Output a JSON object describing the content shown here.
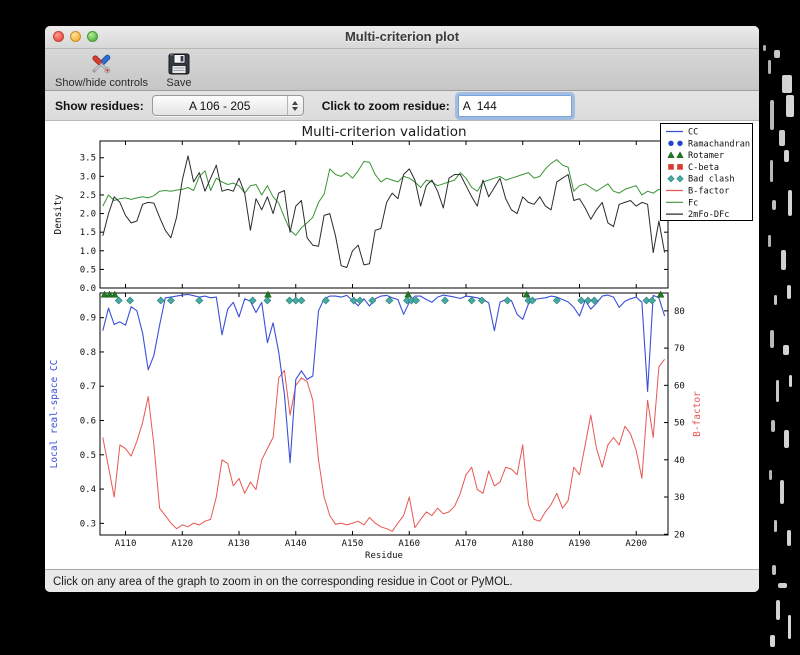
{
  "window": {
    "title": "Multi-criterion plot"
  },
  "toolbar": {
    "items": [
      {
        "label": "Show/hide controls",
        "icon": "tools-icon"
      },
      {
        "label": "Save",
        "icon": "save-icon"
      }
    ]
  },
  "controls": {
    "show_residues_label": "Show residues:",
    "residue_range_value": "A 106 - 205",
    "zoom_residue_label": "Click to zoom residue:",
    "zoom_residue_value": "A  144"
  },
  "status_bar": {
    "text": "Click on any area of the graph to zoom in on the corresponding residue in Coot or PyMOL."
  },
  "chart_data": {
    "type": "line",
    "title": "Multi-criterion validation",
    "xlabel": "Residue",
    "x_start": 106,
    "xlim": [
      105.5,
      205.6
    ],
    "xticks": [
      {
        "value": 110,
        "label": "A110"
      },
      {
        "value": 120,
        "label": "A120"
      },
      {
        "value": 130,
        "label": "A130"
      },
      {
        "value": 140,
        "label": "A140"
      },
      {
        "value": 150,
        "label": "A150"
      },
      {
        "value": 160,
        "label": "A160"
      },
      {
        "value": 170,
        "label": "A170"
      },
      {
        "value": 180,
        "label": "A180"
      },
      {
        "value": 190,
        "label": "A190"
      },
      {
        "value": 200,
        "label": "A200"
      }
    ],
    "legend": [
      {
        "label": "CC",
        "symbol": "line",
        "color": "#3a4fd8"
      },
      {
        "label": "Ramachandran",
        "symbol": "circles",
        "color": "#2645cc"
      },
      {
        "label": "Rotamer",
        "symbol": "triangles",
        "color": "#1e7a1e"
      },
      {
        "label": "C-beta",
        "symbol": "squares",
        "color": "#d93a2e"
      },
      {
        "label": "Bad clash",
        "symbol": "diamonds",
        "color": "#44aaa4"
      },
      {
        "label": "B-factor",
        "symbol": "line",
        "color": "#e85752"
      },
      {
        "label": "Fc",
        "symbol": "line",
        "color": "#3a9437"
      },
      {
        "label": "2mFo-DFc",
        "symbol": "line",
        "color": "#2b2b2b"
      }
    ],
    "top": {
      "ylabel": "Density",
      "ylim": [
        0,
        3.95
      ],
      "yticks": [
        0.0,
        0.5,
        1.0,
        1.5,
        2.0,
        2.5,
        3.0,
        3.5
      ],
      "series": [
        {
          "name": "Fc",
          "color": "#3a9437",
          "values": [
            2.2,
            2.5,
            2.35,
            2.4,
            2.42,
            2.38,
            2.42,
            2.45,
            2.42,
            2.48,
            2.6,
            2.62,
            2.6,
            2.63,
            2.65,
            2.7,
            2.62,
            3.0,
            3.15,
            2.62,
            2.95,
            2.85,
            2.78,
            2.82,
            2.75,
            2.55,
            2.75,
            2.78,
            2.5,
            2.75,
            2.45,
            2.28,
            1.9,
            1.55,
            1.42,
            1.62,
            1.75,
            1.9,
            2.3,
            2.52,
            3.2,
            3.05,
            3.0,
            3.1,
            2.95,
            3.15,
            3.4,
            3.38,
            3.05,
            2.85,
            2.95,
            2.9,
            2.85,
            3.0,
            2.95,
            2.85,
            2.7,
            2.9,
            2.85,
            2.75,
            2.8,
            2.85,
            2.9,
            3.1,
            2.95,
            2.7,
            2.6,
            2.85,
            2.9,
            2.95,
            3.0,
            2.9,
            2.95,
            3.0,
            3.05,
            3.1,
            2.95,
            3.0,
            3.2,
            3.35,
            3.45,
            3.3,
            3.25,
            2.6,
            2.75,
            2.8,
            2.7,
            2.6,
            2.7,
            2.8,
            2.6,
            2.55,
            2.65,
            2.7,
            2.75,
            2.5,
            2.6,
            2.55,
            2.65,
            2.6
          ]
        },
        {
          "name": "2mFo-DFc",
          "color": "#2b2b2b",
          "values": [
            1.4,
            2.0,
            2.45,
            2.3,
            1.95,
            1.75,
            1.8,
            2.25,
            2.3,
            2.28,
            1.9,
            1.55,
            1.35,
            1.9,
            2.9,
            3.55,
            2.85,
            3.1,
            2.6,
            2.95,
            3.3,
            2.6,
            2.65,
            2.6,
            2.95,
            2.55,
            1.55,
            2.4,
            2.1,
            2.45,
            2.0,
            2.55,
            2.62,
            1.5,
            2.2,
            2.35,
            1.35,
            1.15,
            1.12,
            1.95,
            2.0,
            1.4,
            0.6,
            0.55,
            1.0,
            1.15,
            0.62,
            0.65,
            1.55,
            1.6,
            2.3,
            2.55,
            2.4,
            3.05,
            3.2,
            2.9,
            2.2,
            2.75,
            2.9,
            2.6,
            2.15,
            2.95,
            3.05,
            3.05,
            2.75,
            2.45,
            2.2,
            2.9,
            2.45,
            2.7,
            2.95,
            2.4,
            2.1,
            2.0,
            2.45,
            2.3,
            2.25,
            2.45,
            2.2,
            2.1,
            2.85,
            2.95,
            3.05,
            2.35,
            2.4,
            2.15,
            1.85,
            2.1,
            2.3,
            1.75,
            1.65,
            2.25,
            2.3,
            2.35,
            2.2,
            2.3,
            2.25,
            0.95,
            1.8,
            0.95
          ]
        }
      ]
    },
    "bottom": {
      "ylabel_left": "Local real-space CC",
      "ylabel_left_color": "#3a4fd8",
      "ylim_left": [
        0.266,
        0.972
      ],
      "yticks_left": [
        0.3,
        0.4,
        0.5,
        0.6,
        0.7,
        0.8,
        0.9
      ],
      "ylabel_right": "B-factor",
      "ylabel_right_color": "#e85752",
      "ylim_right": [
        19.8,
        84.8
      ],
      "yticks_right": [
        20,
        30,
        40,
        50,
        60,
        70,
        80
      ],
      "series_left": {
        "name": "CC",
        "color": "#3a4fd8",
        "values": [
          0.862,
          0.928,
          0.88,
          0.888,
          0.878,
          0.932,
          0.92,
          0.855,
          0.748,
          0.79,
          0.878,
          0.958,
          0.96,
          0.963,
          0.966,
          0.968,
          0.964,
          0.96,
          0.963,
          0.958,
          0.96,
          0.85,
          0.925,
          0.945,
          0.902,
          0.955,
          0.948,
          0.915,
          0.945,
          0.827,
          0.885,
          0.8,
          0.677,
          0.477,
          0.72,
          0.745,
          0.72,
          0.73,
          0.92,
          0.955,
          0.963,
          0.963,
          0.96,
          0.965,
          0.95,
          0.935,
          0.955,
          0.934,
          0.955,
          0.963,
          0.965,
          0.958,
          0.953,
          0.91,
          0.945,
          0.963,
          0.963,
          0.953,
          0.945,
          0.96,
          0.966,
          0.963,
          0.96,
          0.956,
          0.963,
          0.961,
          0.958,
          0.953,
          0.943,
          0.862,
          0.945,
          0.953,
          0.95,
          0.91,
          0.895,
          0.94,
          0.953,
          0.956,
          0.958,
          0.963,
          0.96,
          0.953,
          0.946,
          0.93,
          0.905,
          0.95,
          0.925,
          0.942,
          0.963,
          0.966,
          0.96,
          0.93,
          0.948,
          0.955,
          0.96,
          0.945,
          0.685,
          0.965,
          0.958,
          0.905
        ]
      },
      "series_right": {
        "name": "B-factor",
        "color": "#e85752",
        "values": [
          46,
          38,
          30,
          44,
          43,
          41,
          45,
          50,
          57,
          44,
          27,
          25,
          23,
          21.5,
          22.5,
          22,
          23,
          22.5,
          23.5,
          24,
          30,
          40,
          39,
          33,
          35,
          31,
          34,
          32,
          40,
          43,
          46,
          62,
          64,
          52,
          60,
          62,
          61,
          56,
          40,
          30,
          25,
          22.7,
          23,
          22.5,
          23,
          23.5,
          22.5,
          24.5,
          23,
          22,
          21.5,
          20.8,
          23,
          25,
          30,
          21.8,
          24,
          26,
          25,
          27,
          25.5,
          26,
          27.5,
          31,
          36,
          38,
          32,
          31,
          37,
          33,
          34,
          38,
          37.5,
          36,
          44,
          28,
          24,
          23.5,
          26,
          28,
          31,
          27,
          29,
          38,
          36,
          44,
          52,
          43,
          38,
          44,
          46,
          44,
          49,
          47,
          42.5,
          35,
          56,
          46,
          65,
          67
        ]
      },
      "markers": {
        "rotamer": {
          "shape": "triangle",
          "color": "#1e7a1e",
          "residues": [
            106.3,
            107.2,
            108.1,
            135.1,
            159.8,
            180.7,
            204.3
          ]
        },
        "bad_clash": {
          "shape": "diamond",
          "color": "#44aaa4",
          "residues": [
            108.8,
            110.8,
            116.2,
            118.0,
            123.0,
            132.4,
            135.0,
            138.9,
            140.0,
            141.0,
            145.3,
            150.2,
            151.3,
            153.5,
            156.5,
            159.6,
            160.4,
            161.2,
            166.3,
            171.0,
            172.8,
            177.3,
            181.0,
            181.7,
            186.0,
            190.3,
            191.5,
            192.6,
            201.8,
            202.8
          ]
        }
      }
    }
  }
}
